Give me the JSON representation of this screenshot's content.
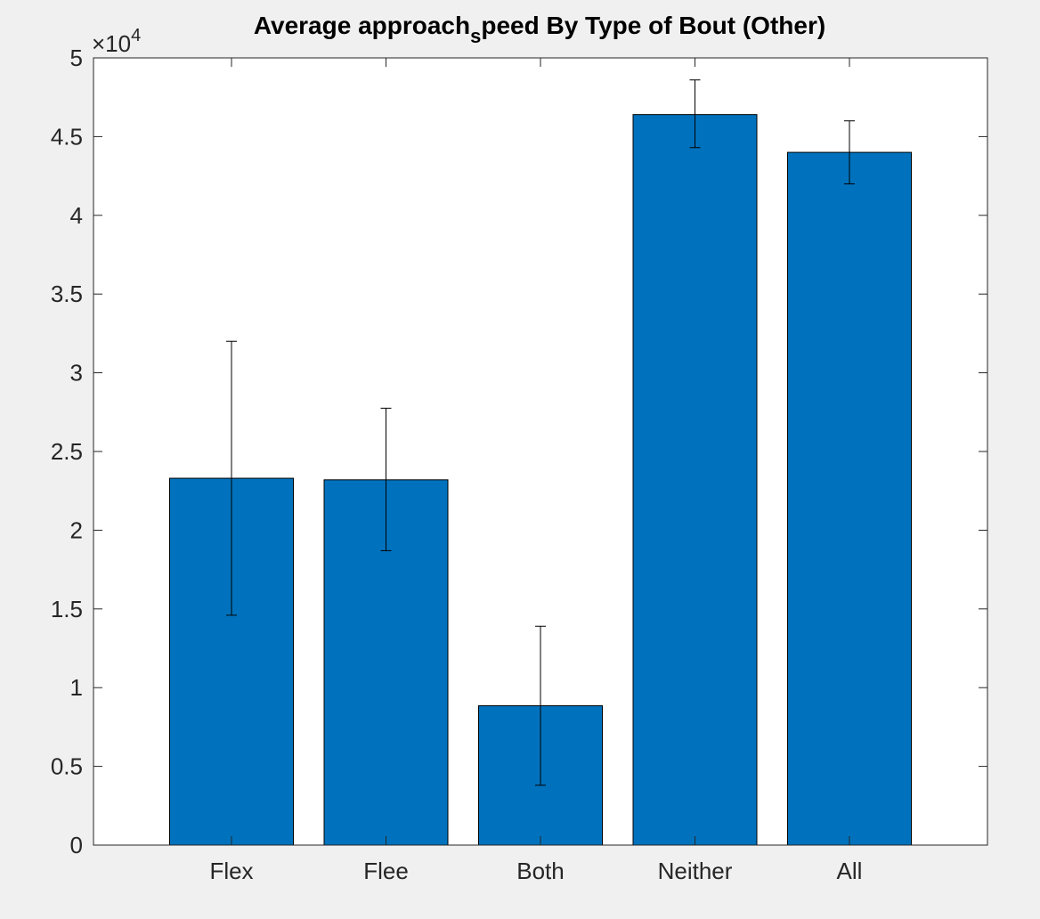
{
  "chart_data": {
    "type": "bar",
    "title_main": "Average approach",
    "title_sub": "s",
    "title_rest": "peed By Type of Bout (Other)",
    "categories": [
      "Flex",
      "Flee",
      "Both",
      "Neither",
      "All"
    ],
    "values": [
      23300,
      23200,
      8850,
      46400,
      44000
    ],
    "errors": [
      [
        14600,
        32000
      ],
      [
        18700,
        27750
      ],
      [
        3800,
        13900
      ],
      [
        44300,
        48600
      ],
      [
        42000,
        46000
      ]
    ],
    "ylim": [
      0,
      50000
    ],
    "yticks": [
      0,
      5000,
      10000,
      15000,
      20000,
      25000,
      30000,
      35000,
      40000,
      45000,
      50000
    ],
    "ytick_labels": [
      "0",
      "0.5",
      "1",
      "1.5",
      "2",
      "2.5",
      "3",
      "3.5",
      "4",
      "4.5",
      "5"
    ],
    "yaxis_multiplier": "×10",
    "yaxis_exponent": "4",
    "xlabel": "",
    "ylabel": "",
    "grid": false,
    "bar_color": "#0072bd",
    "axis_color": "#262626"
  }
}
